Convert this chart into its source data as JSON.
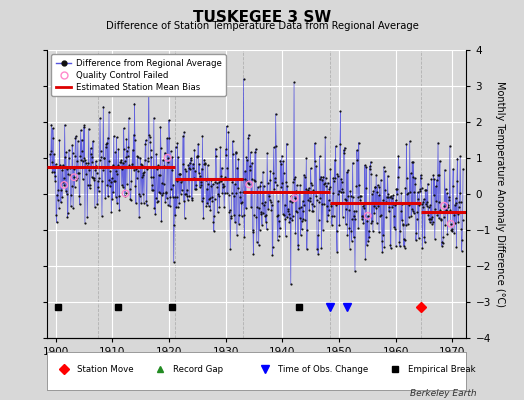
{
  "title": "TUSKEGEE 3 SW",
  "subtitle": "Difference of Station Temperature Data from Regional Average",
  "ylabel": "Monthly Temperature Anomaly Difference (°C)",
  "xlim": [
    1898.5,
    1972.5
  ],
  "ylim": [
    -4,
    4
  ],
  "yticks": [
    -4,
    -3,
    -2,
    -1,
    0,
    1,
    2,
    3,
    4
  ],
  "xticks": [
    1900,
    1910,
    1920,
    1930,
    1940,
    1950,
    1960,
    1970
  ],
  "background_color": "#d8d8d8",
  "plot_bg_color": "#d8d8d8",
  "grid_color": "#ffffff",
  "line_color": "#5555dd",
  "dot_color": "#111111",
  "bias_color": "#dd0000",
  "qc_color": "#ff88cc",
  "watermark": "Berkeley Earth",
  "empirical_breaks": [
    1900.5,
    1911.0,
    1920.5,
    1943.0
  ],
  "station_moves": [
    1964.5
  ],
  "obs_changes": [
    1948.5,
    1951.5
  ],
  "bias_segments": [
    {
      "x": [
        1898.5,
        1907.5
      ],
      "y": [
        0.75,
        0.75
      ]
    },
    {
      "x": [
        1907.5,
        1921.0
      ],
      "y": [
        0.75,
        0.75
      ]
    },
    {
      "x": [
        1921.0,
        1933.0
      ],
      "y": [
        0.42,
        0.42
      ]
    },
    {
      "x": [
        1933.0,
        1948.5
      ],
      "y": [
        0.05,
        0.05
      ]
    },
    {
      "x": [
        1948.5,
        1964.5
      ],
      "y": [
        -0.25,
        -0.25
      ]
    },
    {
      "x": [
        1964.5,
        1972.5
      ],
      "y": [
        -0.5,
        -0.5
      ]
    }
  ],
  "vlines": [
    1907.5,
    1921.0,
    1933.0,
    1948.5,
    1964.5
  ],
  "seed": 42,
  "marker_y": -3.15
}
